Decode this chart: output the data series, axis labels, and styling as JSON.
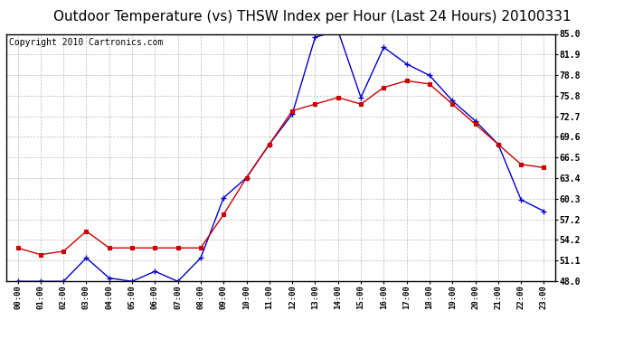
{
  "title": "Outdoor Temperature (vs) THSW Index per Hour (Last 24 Hours) 20100331",
  "copyright": "Copyright 2010 Cartronics.com",
  "hours": [
    "00:00",
    "01:00",
    "02:00",
    "03:00",
    "04:00",
    "05:00",
    "06:00",
    "07:00",
    "08:00",
    "09:00",
    "10:00",
    "11:00",
    "12:00",
    "13:00",
    "14:00",
    "15:00",
    "16:00",
    "17:00",
    "18:00",
    "19:00",
    "20:00",
    "21:00",
    "22:00",
    "23:00"
  ],
  "temp": [
    48.0,
    48.0,
    48.0,
    51.5,
    48.5,
    48.0,
    49.5,
    48.0,
    51.5,
    60.5,
    63.5,
    68.5,
    73.0,
    84.5,
    85.5,
    75.5,
    83.0,
    80.5,
    78.8,
    75.0,
    72.0,
    68.5,
    60.2,
    58.5
  ],
  "thsw": [
    53.0,
    52.0,
    52.5,
    55.5,
    53.0,
    53.0,
    53.0,
    53.0,
    53.0,
    58.0,
    63.5,
    68.5,
    73.5,
    74.5,
    75.5,
    74.5,
    77.0,
    78.0,
    77.5,
    74.5,
    71.5,
    68.5,
    65.5,
    65.0
  ],
  "temp_color": "#0000cc",
  "thsw_color": "#cc0000",
  "ylim_min": 48.0,
  "ylim_max": 85.0,
  "yticks": [
    48.0,
    51.1,
    54.2,
    57.2,
    60.3,
    63.4,
    66.5,
    69.6,
    72.7,
    75.8,
    78.8,
    81.9,
    85.0
  ],
  "bg_color": "#ffffff",
  "plot_bg": "#ffffff",
  "grid_color": "#aaaaaa",
  "title_fontsize": 11,
  "copyright_fontsize": 7
}
